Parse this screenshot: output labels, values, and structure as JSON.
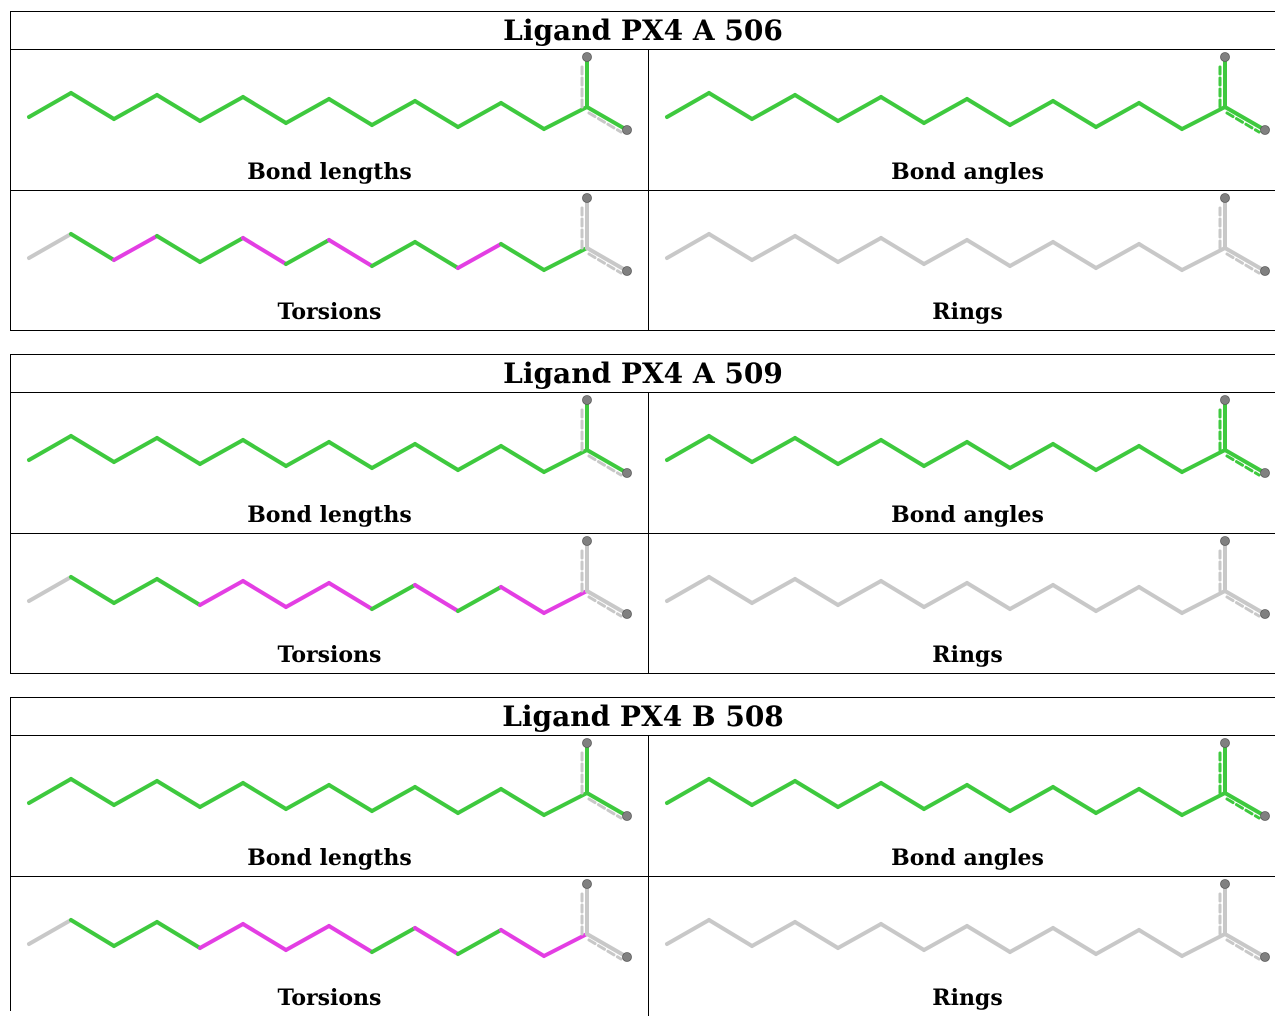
{
  "colors": {
    "ok": "#3ec93e",
    "outlier": "#e33ee3",
    "unassessed": "#c8c8c8",
    "atom": "#808080"
  },
  "panel_labels": {
    "bond_lengths": "Bond lengths",
    "bond_angles": "Bond angles",
    "torsions": "Torsions",
    "rings": "Rings"
  },
  "ligands": [
    {
      "title": "Ligand PX4 A 506",
      "bond_lengths": [
        "ok",
        "ok",
        "ok",
        "ok",
        "ok",
        "ok",
        "ok",
        "ok",
        "ok",
        "ok",
        "ok",
        "ok",
        "ok",
        "ok",
        "ok"
      ],
      "bond_angles": [
        "ok",
        "ok",
        "ok",
        "ok",
        "ok",
        "ok",
        "ok",
        "ok",
        "ok",
        "ok",
        "ok",
        "ok",
        "ok",
        "ok",
        "ok"
      ],
      "torsions": [
        "unassessed",
        "ok",
        "outlier",
        "ok",
        "ok",
        "outlier",
        "ok",
        "outlier",
        "ok",
        "ok",
        "outlier",
        "ok",
        "ok",
        "unassessed",
        "unassessed"
      ],
      "rings": [
        "unassessed",
        "unassessed",
        "unassessed",
        "unassessed",
        "unassessed",
        "unassessed",
        "unassessed",
        "unassessed",
        "unassessed",
        "unassessed",
        "unassessed",
        "unassessed",
        "unassessed",
        "unassessed",
        "unassessed"
      ]
    },
    {
      "title": "Ligand PX4 A 509",
      "bond_lengths": [
        "ok",
        "ok",
        "ok",
        "ok",
        "ok",
        "ok",
        "ok",
        "ok",
        "ok",
        "ok",
        "ok",
        "ok",
        "ok",
        "ok",
        "ok"
      ],
      "bond_angles": [
        "ok",
        "ok",
        "ok",
        "ok",
        "ok",
        "ok",
        "ok",
        "ok",
        "ok",
        "ok",
        "ok",
        "ok",
        "ok",
        "ok",
        "ok"
      ],
      "torsions": [
        "unassessed",
        "ok",
        "ok",
        "ok",
        "outlier",
        "outlier",
        "outlier",
        "outlier",
        "ok",
        "outlier",
        "ok",
        "outlier",
        "outlier",
        "unassessed",
        "unassessed"
      ],
      "rings": [
        "unassessed",
        "unassessed",
        "unassessed",
        "unassessed",
        "unassessed",
        "unassessed",
        "unassessed",
        "unassessed",
        "unassessed",
        "unassessed",
        "unassessed",
        "unassessed",
        "unassessed",
        "unassessed",
        "unassessed"
      ]
    },
    {
      "title": "Ligand PX4 B 508",
      "bond_lengths": [
        "ok",
        "ok",
        "ok",
        "ok",
        "ok",
        "ok",
        "ok",
        "ok",
        "ok",
        "ok",
        "ok",
        "ok",
        "ok",
        "ok",
        "ok"
      ],
      "bond_angles": [
        "ok",
        "ok",
        "ok",
        "ok",
        "ok",
        "ok",
        "ok",
        "ok",
        "ok",
        "ok",
        "ok",
        "ok",
        "ok",
        "ok",
        "ok"
      ],
      "torsions": [
        "unassessed",
        "ok",
        "ok",
        "ok",
        "outlier",
        "outlier",
        "outlier",
        "outlier",
        "ok",
        "outlier",
        "ok",
        "outlier",
        "outlier",
        "unassessed",
        "unassessed"
      ],
      "rings": [
        "unassessed",
        "unassessed",
        "unassessed",
        "unassessed",
        "unassessed",
        "unassessed",
        "unassessed",
        "unassessed",
        "unassessed",
        "unassessed",
        "unassessed",
        "unassessed",
        "unassessed",
        "unassessed",
        "unassessed"
      ]
    }
  ]
}
